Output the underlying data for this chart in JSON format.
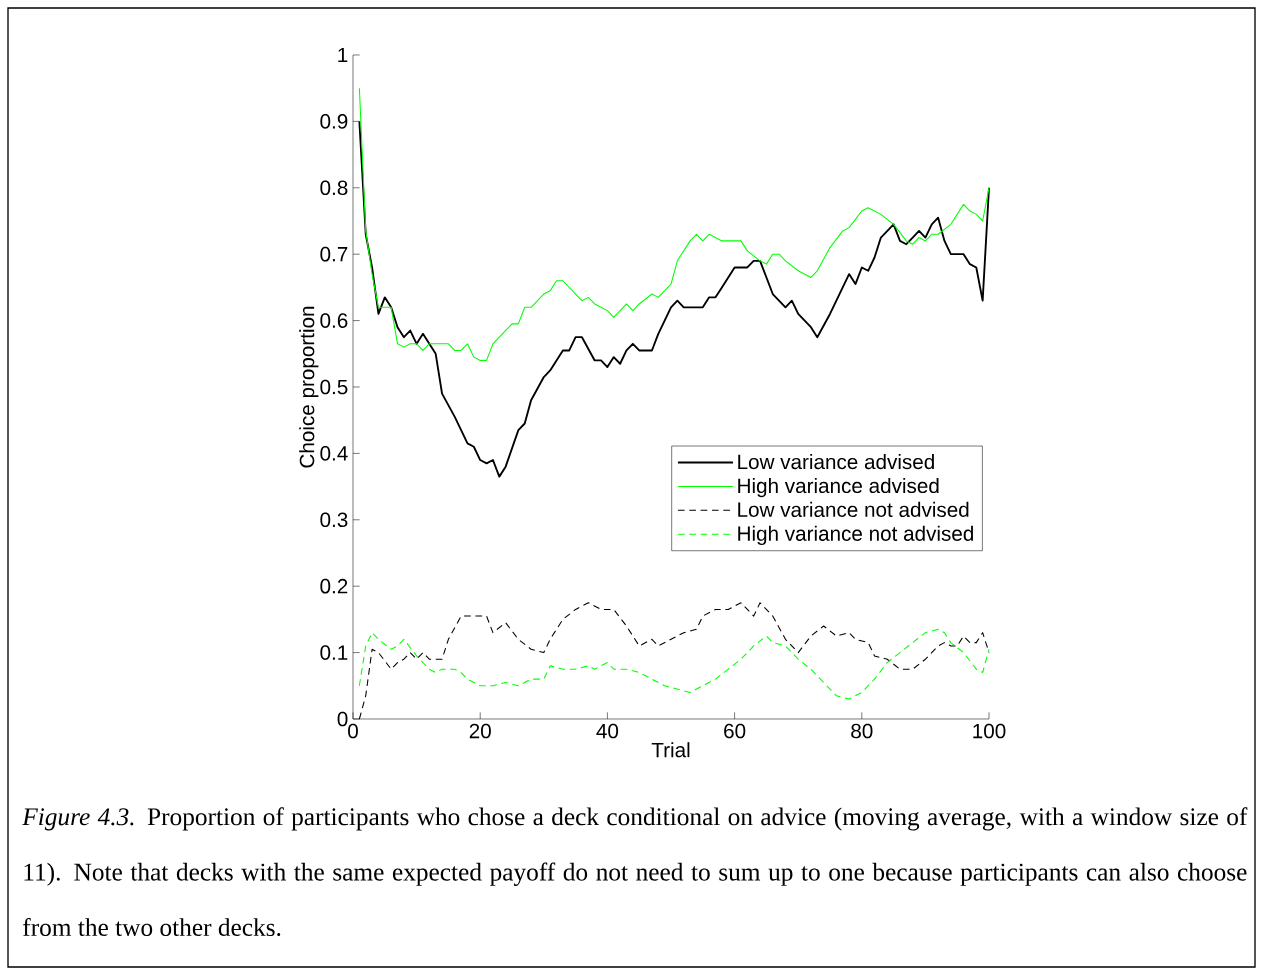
{
  "chart_data": {
    "type": "line",
    "xlabel": "Trial",
    "ylabel": "Choice proportion",
    "xlim": [
      0,
      100
    ],
    "ylim": [
      0,
      1
    ],
    "xticks": [
      0,
      20,
      40,
      60,
      80,
      100
    ],
    "yticks": [
      0,
      0.1,
      0.2,
      0.3,
      0.4,
      0.5,
      0.6,
      0.7,
      0.8,
      0.9,
      1
    ],
    "grid": false,
    "legend": "right",
    "marker": "none",
    "annotations": [
      "*Figure 4.3.* Proportion of participants who chose a deck conditional on advice (moving average, with a window size of 11). Note that decks with the same expected payoff do not need to sum up to one because participants can also choose from the two other decks."
    ],
    "series": [
      {
        "name": "Low variance advised",
        "color": "#000000",
        "line_style": "solid",
        "x": [
          1,
          2,
          3,
          4,
          5,
          6,
          7,
          8,
          9,
          10,
          11,
          12,
          13,
          14,
          16,
          18,
          19,
          20,
          21,
          22,
          23,
          24,
          26,
          27,
          28,
          30,
          31,
          33,
          34,
          35,
          36,
          38,
          39,
          40,
          41,
          42,
          43,
          44,
          45,
          47,
          48,
          50,
          51,
          52,
          55,
          56,
          57,
          58,
          60,
          62,
          63,
          64,
          66,
          68,
          69,
          70,
          72,
          73,
          75,
          77,
          78,
          79,
          80,
          81,
          82,
          83,
          85,
          86,
          87,
          88,
          89,
          90,
          91,
          92,
          93,
          94,
          96,
          97,
          98,
          99,
          100
        ],
        "values": [
          0.9,
          0.73,
          0.68,
          0.61,
          0.635,
          0.62,
          0.59,
          0.575,
          0.585,
          0.565,
          0.58,
          0.565,
          0.55,
          0.49,
          0.455,
          0.415,
          0.41,
          0.39,
          0.385,
          0.39,
          0.365,
          0.38,
          0.435,
          0.445,
          0.48,
          0.515,
          0.525,
          0.555,
          0.555,
          0.575,
          0.575,
          0.54,
          0.54,
          0.53,
          0.545,
          0.535,
          0.555,
          0.565,
          0.555,
          0.555,
          0.58,
          0.62,
          0.63,
          0.62,
          0.62,
          0.635,
          0.635,
          0.65,
          0.68,
          0.68,
          0.69,
          0.69,
          0.64,
          0.62,
          0.63,
          0.61,
          0.59,
          0.575,
          0.61,
          0.65,
          0.67,
          0.655,
          0.68,
          0.675,
          0.695,
          0.725,
          0.745,
          0.72,
          0.715,
          0.725,
          0.735,
          0.725,
          0.745,
          0.755,
          0.72,
          0.7,
          0.7,
          0.685,
          0.68,
          0.63,
          0.8
        ]
      },
      {
        "name": "High variance advised",
        "color": "#00ff00",
        "line_style": "solid",
        "x": [
          1,
          2,
          3,
          4,
          5,
          6,
          7,
          8,
          9,
          10,
          11,
          12,
          14,
          15,
          16,
          17,
          18,
          19,
          20,
          21,
          22,
          23,
          25,
          26,
          27,
          28,
          30,
          31,
          32,
          33,
          35,
          36,
          37,
          38,
          40,
          41,
          42,
          43,
          44,
          45,
          47,
          48,
          50,
          51,
          53,
          54,
          55,
          56,
          58,
          60,
          61,
          62,
          64,
          65,
          66,
          67,
          68,
          70,
          72,
          73,
          75,
          77,
          78,
          80,
          81,
          83,
          85,
          87,
          88,
          89,
          90,
          91,
          92,
          94,
          96,
          97,
          98,
          99,
          100
        ],
        "values": [
          0.95,
          0.735,
          0.67,
          0.62,
          0.62,
          0.62,
          0.565,
          0.56,
          0.565,
          0.565,
          0.555,
          0.565,
          0.565,
          0.565,
          0.555,
          0.555,
          0.565,
          0.545,
          0.54,
          0.54,
          0.565,
          0.575,
          0.595,
          0.595,
          0.62,
          0.62,
          0.64,
          0.645,
          0.66,
          0.66,
          0.64,
          0.63,
          0.635,
          0.625,
          0.615,
          0.605,
          0.615,
          0.625,
          0.615,
          0.625,
          0.64,
          0.635,
          0.655,
          0.69,
          0.72,
          0.73,
          0.72,
          0.73,
          0.72,
          0.72,
          0.72,
          0.705,
          0.69,
          0.685,
          0.7,
          0.7,
          0.69,
          0.675,
          0.665,
          0.675,
          0.71,
          0.735,
          0.74,
          0.765,
          0.77,
          0.76,
          0.745,
          0.72,
          0.715,
          0.725,
          0.72,
          0.73,
          0.73,
          0.745,
          0.775,
          0.765,
          0.76,
          0.75,
          0.8
        ]
      },
      {
        "name": "Low variance not advised",
        "color": "#000000",
        "line_style": "dashed",
        "x": [
          1,
          2,
          3,
          4,
          6,
          7,
          8,
          9,
          10,
          11,
          12,
          13,
          14,
          15,
          17,
          19,
          21,
          22,
          24,
          26,
          28,
          30,
          31,
          33,
          35,
          37,
          39,
          41,
          43,
          45,
          47,
          48,
          50,
          52,
          54,
          55,
          57,
          59,
          61,
          63,
          64,
          66,
          68,
          70,
          72,
          74,
          76,
          78,
          79,
          81,
          82,
          84,
          86,
          87,
          88,
          90,
          92,
          93,
          94,
          95,
          96,
          97,
          98,
          99,
          100
        ],
        "values": [
          0.0,
          0.035,
          0.105,
          0.1,
          0.075,
          0.085,
          0.09,
          0.1,
          0.09,
          0.1,
          0.09,
          0.09,
          0.09,
          0.12,
          0.155,
          0.155,
          0.155,
          0.13,
          0.145,
          0.12,
          0.105,
          0.1,
          0.12,
          0.15,
          0.165,
          0.175,
          0.165,
          0.165,
          0.14,
          0.11,
          0.12,
          0.11,
          0.12,
          0.13,
          0.135,
          0.155,
          0.165,
          0.165,
          0.175,
          0.155,
          0.175,
          0.155,
          0.12,
          0.1,
          0.125,
          0.14,
          0.125,
          0.13,
          0.12,
          0.115,
          0.095,
          0.09,
          0.075,
          0.075,
          0.075,
          0.09,
          0.11,
          0.115,
          0.11,
          0.11,
          0.125,
          0.115,
          0.115,
          0.13,
          0.1
        ]
      },
      {
        "name": "High variance not advised",
        "color": "#00ff00",
        "line_style": "dashed",
        "x": [
          1,
          2,
          3,
          4,
          6,
          7,
          8,
          10,
          12,
          13,
          14,
          16,
          17,
          18,
          20,
          22,
          24,
          26,
          28,
          30,
          31,
          33,
          35,
          37,
          38,
          40,
          41,
          43,
          45,
          47,
          49,
          51,
          53,
          55,
          57,
          59,
          61,
          63,
          65,
          66,
          68,
          70,
          72,
          74,
          76,
          78,
          80,
          82,
          84,
          86,
          88,
          90,
          92,
          93,
          94,
          96,
          98,
          99,
          100
        ],
        "values": [
          0.05,
          0.11,
          0.13,
          0.12,
          0.105,
          0.11,
          0.12,
          0.095,
          0.075,
          0.07,
          0.075,
          0.075,
          0.07,
          0.06,
          0.05,
          0.05,
          0.055,
          0.05,
          0.06,
          0.06,
          0.08,
          0.075,
          0.075,
          0.08,
          0.075,
          0.085,
          0.075,
          0.075,
          0.07,
          0.06,
          0.05,
          0.045,
          0.04,
          0.05,
          0.06,
          0.075,
          0.09,
          0.11,
          0.125,
          0.115,
          0.11,
          0.09,
          0.075,
          0.055,
          0.035,
          0.03,
          0.04,
          0.06,
          0.085,
          0.1,
          0.115,
          0.13,
          0.135,
          0.13,
          0.115,
          0.1,
          0.075,
          0.07,
          0.105
        ]
      }
    ]
  }
}
